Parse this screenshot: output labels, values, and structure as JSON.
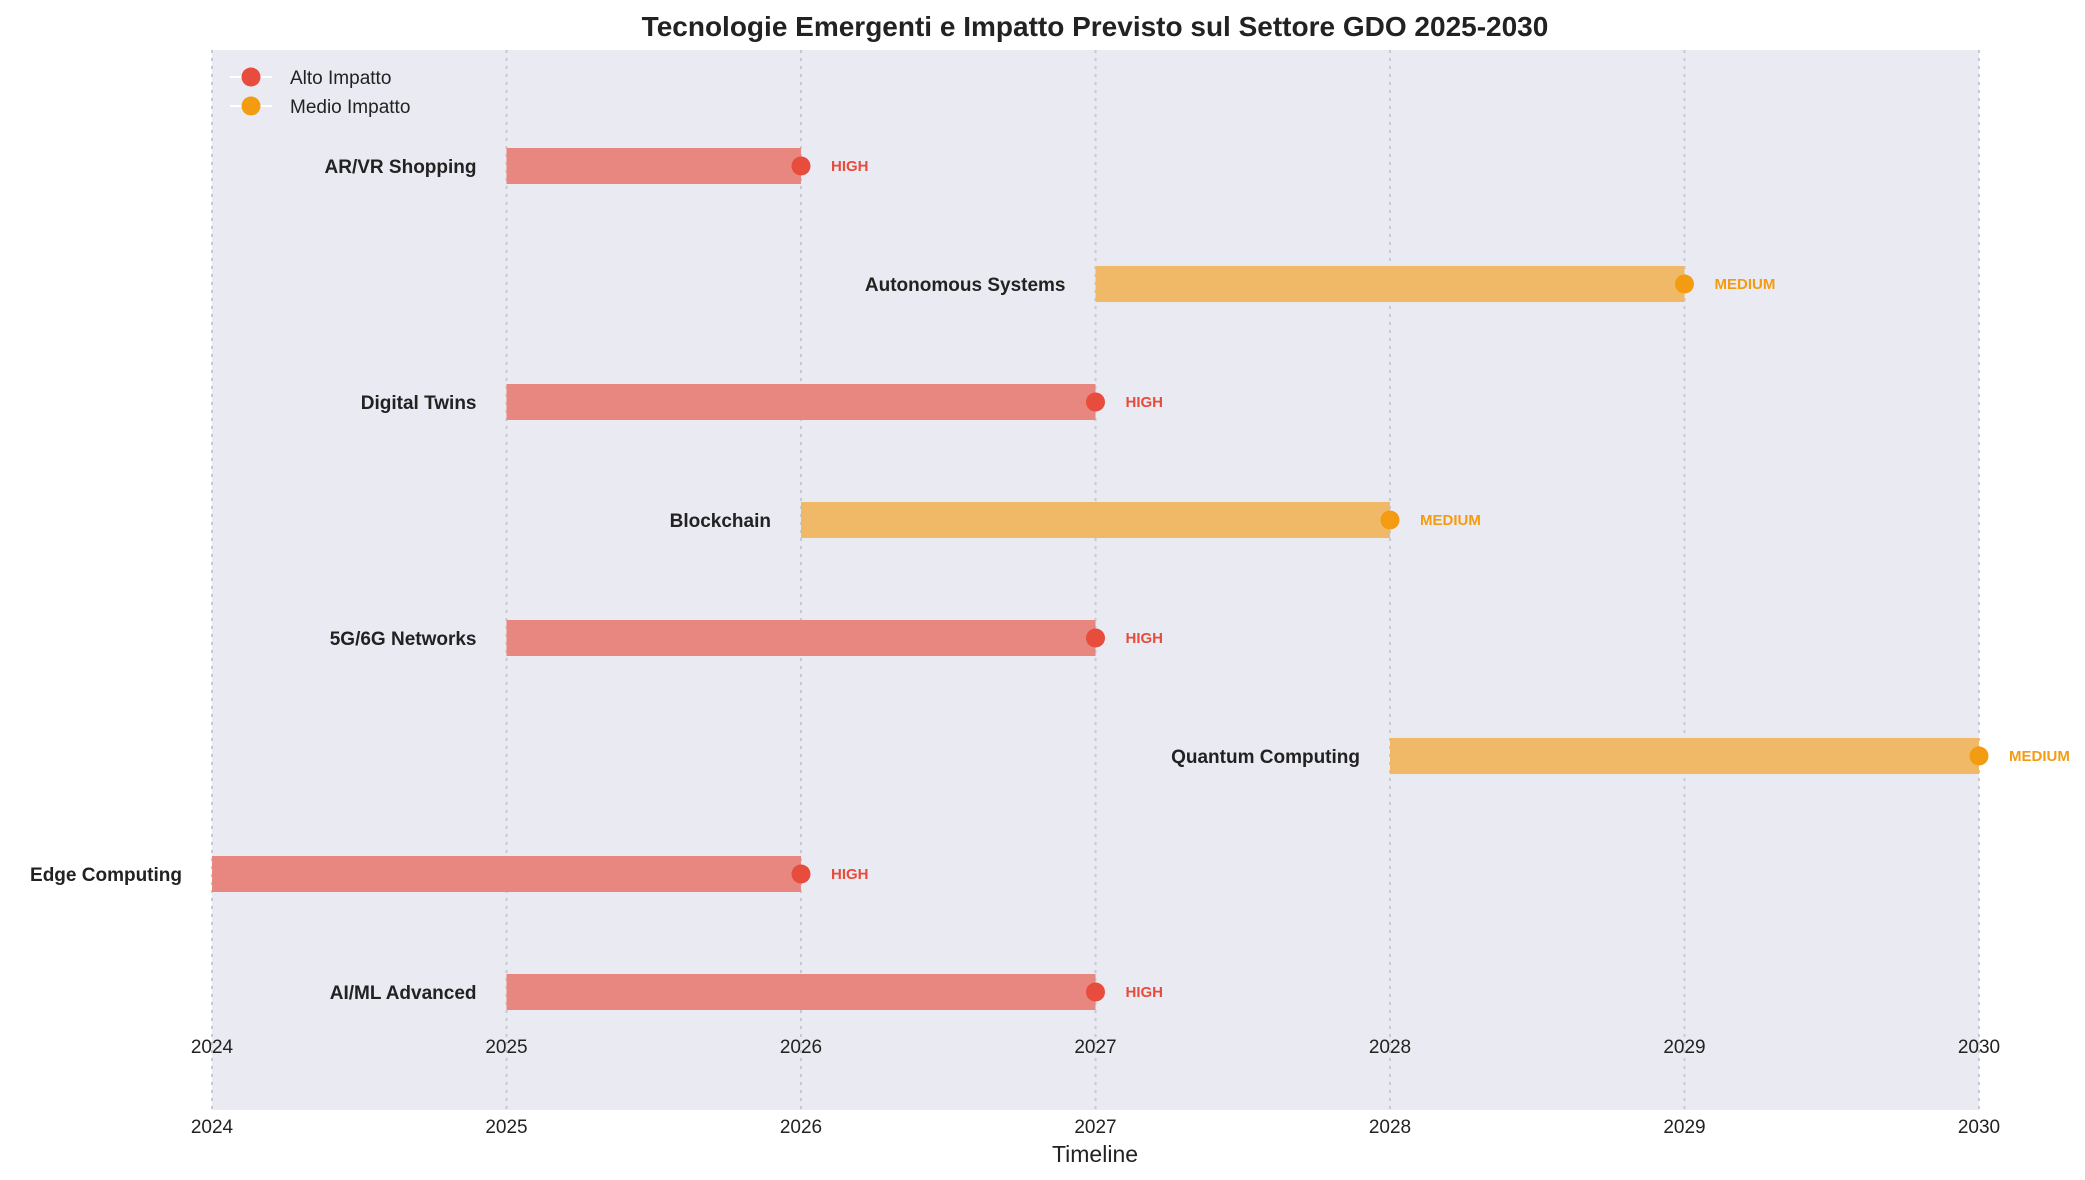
{
  "chart_data": {
    "type": "gantt",
    "title": "Tecnologie Emergenti e Impatto Previsto sul Settore GDO 2025-2030",
    "xlabel": "Timeline",
    "ylabel": "",
    "xlim": [
      2024,
      2030
    ],
    "x_ticks": [
      "2024",
      "2025",
      "2026",
      "2027",
      "2028",
      "2029",
      "2030"
    ],
    "grid": "vertical dotted",
    "legend_position": "top-left",
    "legend": [
      {
        "label": "Alto Impatto",
        "color": "#e74c3c"
      },
      {
        "label": "Medio Impatto",
        "color": "#f39c12"
      }
    ],
    "impact_colors": {
      "HIGH": {
        "bar": "#e8877f",
        "marker": "#e74c3c",
        "text": "#e74c3c"
      },
      "MEDIUM": {
        "bar": "#f0b967",
        "marker": "#f39c12",
        "text": "#f39c12"
      }
    },
    "tasks": [
      {
        "name": "AI/ML Advanced",
        "start": 2025,
        "end": 2027,
        "impact": "HIGH"
      },
      {
        "name": "Edge Computing",
        "start": 2024,
        "end": 2026,
        "impact": "HIGH"
      },
      {
        "name": "Quantum Computing",
        "start": 2028,
        "end": 2030,
        "impact": "MEDIUM"
      },
      {
        "name": "5G/6G Networks",
        "start": 2025,
        "end": 2027,
        "impact": "HIGH"
      },
      {
        "name": "Blockchain",
        "start": 2026,
        "end": 2028,
        "impact": "MEDIUM"
      },
      {
        "name": "Digital Twins",
        "start": 2025,
        "end": 2027,
        "impact": "HIGH"
      },
      {
        "name": "Autonomous Systems",
        "start": 2027,
        "end": 2029,
        "impact": "MEDIUM"
      },
      {
        "name": "AR/VR Shopping",
        "start": 2025,
        "end": 2026,
        "impact": "HIGH"
      }
    ]
  }
}
